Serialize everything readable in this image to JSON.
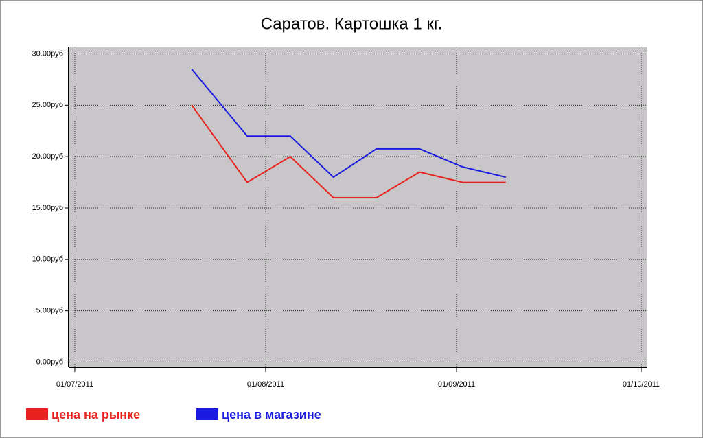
{
  "chart_data": {
    "type": "line",
    "title": "Саратов. Картошка 1 кг.",
    "x": [
      "2011-07-20",
      "2011-07-29",
      "2011-08-05",
      "2011-08-12",
      "2011-08-19",
      "2011-08-26",
      "2011-09-02",
      "2011-09-09"
    ],
    "series": [
      {
        "name": "цена на рынке",
        "color": "#e8221e",
        "values": [
          25,
          17.5,
          20,
          16,
          16,
          18.5,
          17.5,
          17.5
        ]
      },
      {
        "name": "цена в магазине",
        "color": "#1a1ae0",
        "values": [
          28.5,
          22,
          22,
          18,
          20.75,
          20.75,
          19,
          18
        ]
      }
    ],
    "xlim": [
      "2011-06-30",
      "2011-10-02"
    ],
    "xticks": [
      {
        "value": "2011-07-01",
        "label": "01/07/2011"
      },
      {
        "value": "2011-08-01",
        "label": "01/08/2011"
      },
      {
        "value": "2011-09-01",
        "label": "01/09/2011"
      },
      {
        "value": "2011-10-01",
        "label": "01/10/2011"
      }
    ],
    "ylim": [
      -0.5,
      30.7
    ],
    "yticks": [
      {
        "value": 0,
        "label": "0.00руб"
      },
      {
        "value": 5,
        "label": "5.00руб"
      },
      {
        "value": 10,
        "label": "10.00руб"
      },
      {
        "value": 15,
        "label": "15.00руб"
      },
      {
        "value": 20,
        "label": "20.00руб"
      },
      {
        "value": 25,
        "label": "25.00руб"
      },
      {
        "value": 30,
        "label": "30.00руб"
      }
    ],
    "grid": true,
    "background": "#c8c6c8",
    "legend": "bottom-left"
  }
}
